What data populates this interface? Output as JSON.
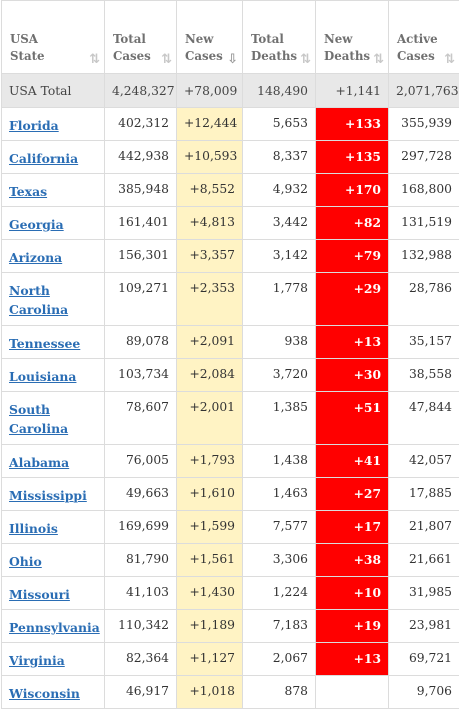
{
  "table": {
    "headers": [
      {
        "line1": "USA",
        "line2": "State",
        "sort": "⇅"
      },
      {
        "line1": "Total",
        "line2": "Cases",
        "sort": "⇅"
      },
      {
        "line1": "New",
        "line2": "Cases",
        "sort": "⇩"
      },
      {
        "line1": "Total",
        "line2": "Deaths",
        "sort": "⇅"
      },
      {
        "line1": "New",
        "line2": "Deaths",
        "sort": "⇅"
      },
      {
        "line1": "Active",
        "line2": "Cases",
        "sort": "⇅"
      }
    ],
    "total": {
      "state": "USA Total",
      "total_cases": "4,248,327",
      "new_cases": "+78,009",
      "total_deaths": "148,490",
      "new_deaths": "+1,141",
      "active_cases": "2,071,763"
    },
    "rows": [
      {
        "state": "Florida",
        "total_cases": "402,312",
        "new_cases": "+12,444",
        "total_deaths": "5,653",
        "new_deaths": "+133",
        "active_cases": "355,939"
      },
      {
        "state": "California",
        "total_cases": "442,938",
        "new_cases": "+10,593",
        "total_deaths": "8,337",
        "new_deaths": "+135",
        "active_cases": "297,728"
      },
      {
        "state": "Texas",
        "total_cases": "385,948",
        "new_cases": "+8,552",
        "total_deaths": "4,932",
        "new_deaths": "+170",
        "active_cases": "168,800"
      },
      {
        "state": "Georgia",
        "total_cases": "161,401",
        "new_cases": "+4,813",
        "total_deaths": "3,442",
        "new_deaths": "+82",
        "active_cases": "131,519"
      },
      {
        "state": "Arizona",
        "total_cases": "156,301",
        "new_cases": "+3,357",
        "total_deaths": "3,142",
        "new_deaths": "+79",
        "active_cases": "132,988"
      },
      {
        "state": "North Carolina",
        "total_cases": "109,271",
        "new_cases": "+2,353",
        "total_deaths": "1,778",
        "new_deaths": "+29",
        "active_cases": "28,786"
      },
      {
        "state": "Tennessee",
        "total_cases": "89,078",
        "new_cases": "+2,091",
        "total_deaths": "938",
        "new_deaths": "+13",
        "active_cases": "35,157"
      },
      {
        "state": "Louisiana",
        "total_cases": "103,734",
        "new_cases": "+2,084",
        "total_deaths": "3,720",
        "new_deaths": "+30",
        "active_cases": "38,558"
      },
      {
        "state": "South Carolina",
        "total_cases": "78,607",
        "new_cases": "+2,001",
        "total_deaths": "1,385",
        "new_deaths": "+51",
        "active_cases": "47,844"
      },
      {
        "state": "Alabama",
        "total_cases": "76,005",
        "new_cases": "+1,793",
        "total_deaths": "1,438",
        "new_deaths": "+41",
        "active_cases": "42,057"
      },
      {
        "state": "Mississippi",
        "total_cases": "49,663",
        "new_cases": "+1,610",
        "total_deaths": "1,463",
        "new_deaths": "+27",
        "active_cases": "17,885"
      },
      {
        "state": "Illinois",
        "total_cases": "169,699",
        "new_cases": "+1,599",
        "total_deaths": "7,577",
        "new_deaths": "+17",
        "active_cases": "21,807"
      },
      {
        "state": "Ohio",
        "total_cases": "81,790",
        "new_cases": "+1,561",
        "total_deaths": "3,306",
        "new_deaths": "+38",
        "active_cases": "21,661"
      },
      {
        "state": "Missouri",
        "total_cases": "41,103",
        "new_cases": "+1,430",
        "total_deaths": "1,224",
        "new_deaths": "+10",
        "active_cases": "31,985"
      },
      {
        "state": "Pennsylvania",
        "total_cases": "110,342",
        "new_cases": "+1,189",
        "total_deaths": "7,183",
        "new_deaths": "+19",
        "active_cases": "23,981"
      },
      {
        "state": "Virginia",
        "total_cases": "82,364",
        "new_cases": "+1,127",
        "total_deaths": "2,067",
        "new_deaths": "+13",
        "active_cases": "69,721"
      },
      {
        "state": "Wisconsin",
        "total_cases": "46,917",
        "new_cases": "+1,018",
        "total_deaths": "878",
        "new_deaths": "",
        "active_cases": "9,706"
      }
    ],
    "colors": {
      "new_cases_bg": "#fff3c4",
      "new_deaths_bg": "#ff0000",
      "total_row_bg": "#e8e8e8",
      "link": "#2a6db4"
    }
  }
}
